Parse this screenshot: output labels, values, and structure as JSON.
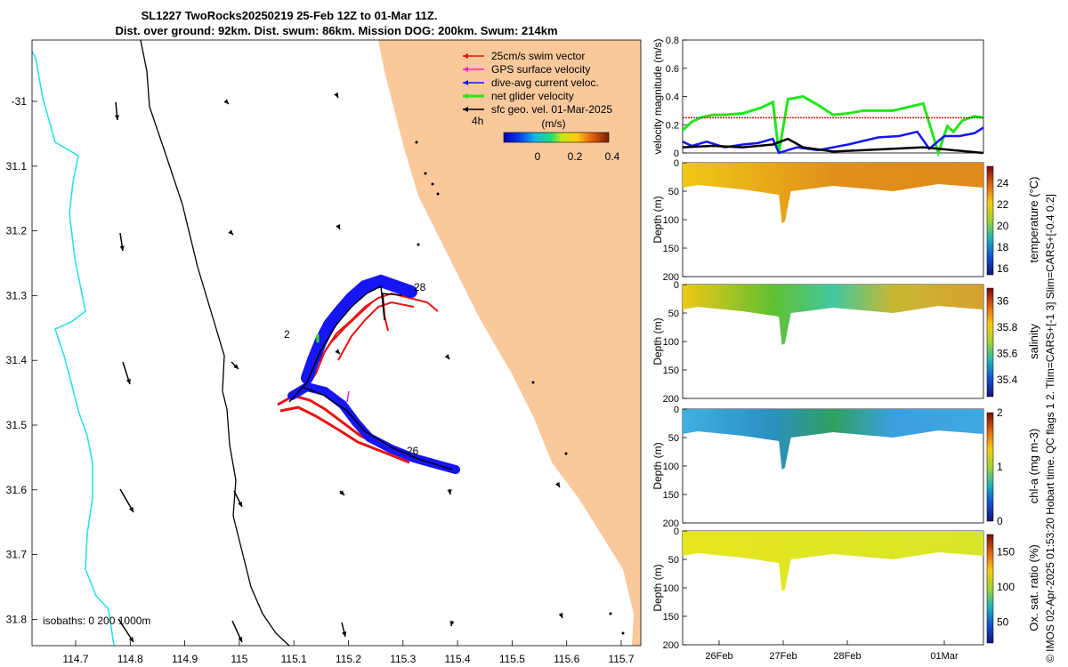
{
  "title_line1": "SL1227 TwoRocks20250219 25-Feb 12Z to 01-Mar 11Z.",
  "title_line2": "Dist. over ground: 92km. Dist. swum: 86km. Mission DOG: 200km. Swum: 214km",
  "side_note": "© IMOS 02-Apr-2025 01:53:20 Hobart time. QC flags 1  2. Tlim=CARS+[-1 3] Slim=CARS+[-0.4 0.2]",
  "colors": {
    "land": "#f9c89b",
    "swim_vector": "#e8120f",
    "gps_velocity": "#ff1dd7",
    "current_vector": "#1515f5",
    "glider_velocity": "#22e61a",
    "geo_velocity": "#000000",
    "isobath_shallow": "#2de0e8",
    "isobath_deep": "#000000"
  },
  "map": {
    "lon_ticks": [
      "114.7",
      "114.8",
      "114.9",
      "115",
      "115.1",
      "115.2",
      "115.3",
      "115.4",
      "115.5",
      "115.6",
      "115.7"
    ],
    "lat_ticks": [
      "-31",
      "31.1",
      "31.2",
      "31.3",
      "31.4",
      "31.5",
      "31.6",
      "31.7",
      "31.8"
    ],
    "legend": [
      {
        "label": "25cm/s swim vector",
        "color_key": "swim_vector"
      },
      {
        "label": "GPS surface velocity",
        "color_key": "gps_velocity"
      },
      {
        "label": "dive-avg current veloc.",
        "color_key": "current_vector"
      },
      {
        "label": "net glider velocity",
        "color_key": "glider_velocity"
      },
      {
        "label": "sfc geo. vel. 01-Mar-2025",
        "color_key": "geo_velocity"
      }
    ],
    "legend_unit": "(m/s)",
    "legend_hours": "4h",
    "colorbar_ticks": [
      "0",
      "0.2",
      "0.4"
    ],
    "day_labels": [
      "28",
      "2",
      "26"
    ],
    "isobaths_label": "isobaths: 0   200  1000m"
  },
  "chart_data": [
    {
      "type": "line",
      "title": "",
      "ylabel": "velocity magnitude (m/s)",
      "ylim": [
        0,
        0.8
      ],
      "y_ticks": [
        "0",
        "0.2",
        "0.4",
        "0.6",
        "0.8"
      ],
      "x_ticks": [
        "26Feb",
        "27Feb",
        "28Feb",
        "01Mar"
      ],
      "series": [
        {
          "name": "net glider velocity",
          "color_key": "glider_velocity",
          "x": [
            0,
            0.03,
            0.06,
            0.1,
            0.14,
            0.2,
            0.26,
            0.3,
            0.32,
            0.35,
            0.4,
            0.45,
            0.5,
            0.55,
            0.6,
            0.7,
            0.76,
            0.8,
            0.85,
            0.88,
            0.9,
            0.93,
            0.97,
            1.0
          ],
          "y": [
            0.16,
            0.22,
            0.25,
            0.27,
            0.27,
            0.28,
            0.32,
            0.36,
            0.0,
            0.38,
            0.4,
            0.34,
            0.27,
            0.28,
            0.3,
            0.3,
            0.33,
            0.35,
            0.0,
            0.19,
            0.15,
            0.23,
            0.26,
            0.25
          ]
        },
        {
          "name": "dive-avg current",
          "color_key": "current_vector",
          "x": [
            0,
            0.03,
            0.08,
            0.14,
            0.2,
            0.25,
            0.3,
            0.32,
            0.38,
            0.45,
            0.55,
            0.65,
            0.72,
            0.78,
            0.82,
            0.87,
            0.92,
            0.97,
            1.0
          ],
          "y": [
            0.08,
            0.05,
            0.08,
            0.04,
            0.06,
            0.07,
            0.1,
            0.0,
            0.04,
            0.02,
            0.06,
            0.11,
            0.12,
            0.15,
            0.03,
            0.12,
            0.12,
            0.14,
            0.18
          ]
        },
        {
          "name": "sfc geo. vel.",
          "color_key": "geo_velocity",
          "x": [
            0,
            0.1,
            0.2,
            0.3,
            0.35,
            0.4,
            0.5,
            0.6,
            0.7,
            0.8,
            0.9,
            1.0
          ],
          "y": [
            0.04,
            0.05,
            0.04,
            0.06,
            0.1,
            0.04,
            0.01,
            0.02,
            0.03,
            0.04,
            0.02,
            0.0
          ]
        },
        {
          "name": "25cm/s swim",
          "color_key": "swim_vector",
          "x": [
            0,
            1
          ],
          "y": [
            0.25,
            0.25
          ]
        }
      ]
    },
    {
      "type": "heatmap",
      "ylabel": "Depth (m)",
      "cbar_label": "temperature (°C)",
      "cbar_ticks": [
        "24",
        "22",
        "20",
        "18",
        "16"
      ],
      "y_ticks": [
        "0",
        "50",
        "100",
        "150",
        "200"
      ],
      "x_ticks": [
        "26Feb",
        "27Feb",
        "28Feb",
        "01Mar"
      ],
      "value_range": [
        15.4,
        25.6
      ],
      "representative_value": 23.7
    },
    {
      "type": "heatmap",
      "ylabel": "Depth (m)",
      "cbar_label": "salinity",
      "cbar_ticks": [
        "36",
        "35.8",
        "35.6",
        "35.4"
      ],
      "y_ticks": [
        "0",
        "50",
        "100",
        "150",
        "200"
      ],
      "x_ticks": [
        "26Feb",
        "27Feb",
        "28Feb",
        "01Mar"
      ],
      "value_range": [
        35.27,
        36.1
      ],
      "representative_value": 35.8
    },
    {
      "type": "heatmap",
      "ylabel": "Depth (m)",
      "cbar_label": "chl-a (mg m-3)",
      "cbar_ticks": [
        "2",
        "1",
        "0"
      ],
      "y_ticks": [
        "0",
        "50",
        "100",
        "150",
        "200"
      ],
      "x_ticks": [
        "26Feb",
        "27Feb",
        "28Feb",
        "01Mar"
      ],
      "value_range": [
        0,
        2
      ],
      "representative_value": 0.5
    },
    {
      "type": "heatmap",
      "ylabel": "Depth (m)",
      "cbar_label": "Ox. sat. ratio (%)",
      "cbar_ticks": [
        "150",
        "100",
        "50"
      ],
      "y_ticks": [
        "0",
        "50",
        "100",
        "150",
        "200"
      ],
      "x_ticks": [
        "26Feb",
        "27Feb",
        "28Feb",
        "01Mar"
      ],
      "value_range": [
        20,
        175
      ],
      "representative_value": 125
    }
  ]
}
